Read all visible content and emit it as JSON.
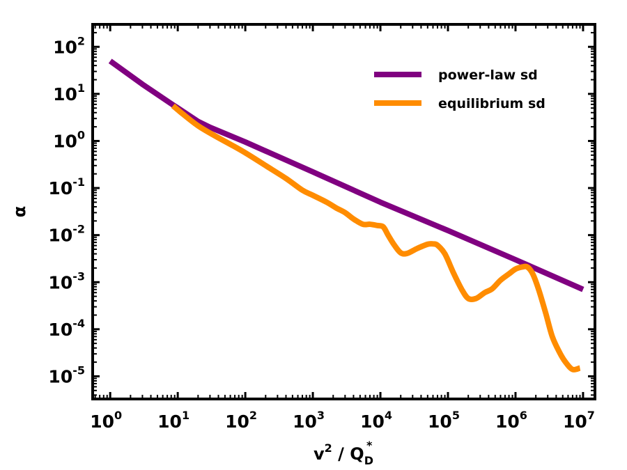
{
  "chart_data": {
    "type": "line",
    "xscale": "log",
    "yscale": "log",
    "xlabel": "v² / Q_D*",
    "xlabel_parts": {
      "base": "v",
      "base_sup": "2",
      "sep": " / ",
      "q": "Q",
      "q_sub": "D",
      "q_sup": "*"
    },
    "ylabel": "α",
    "xlim": [
      0.55,
      15000000
    ],
    "ylim": [
      3.3e-06,
      300
    ],
    "x_ticks": [
      {
        "base": "10",
        "exp": "0",
        "value": 1
      },
      {
        "base": "10",
        "exp": "1",
        "value": 10
      },
      {
        "base": "10",
        "exp": "2",
        "value": 100
      },
      {
        "base": "10",
        "exp": "3",
        "value": 1000
      },
      {
        "base": "10",
        "exp": "4",
        "value": 10000
      },
      {
        "base": "10",
        "exp": "5",
        "value": 100000
      },
      {
        "base": "10",
        "exp": "6",
        "value": 1000000
      },
      {
        "base": "10",
        "exp": "7",
        "value": 10000000
      }
    ],
    "y_ticks": [
      {
        "base": "10",
        "exp": "2",
        "value": 100
      },
      {
        "base": "10",
        "exp": "1",
        "value": 10
      },
      {
        "base": "10",
        "exp": "0",
        "value": 1
      },
      {
        "base": "10",
        "exp": "-1",
        "value": 0.1
      },
      {
        "base": "10",
        "exp": "-2",
        "value": 0.01
      },
      {
        "base": "10",
        "exp": "-3",
        "value": 0.001
      },
      {
        "base": "10",
        "exp": "-4",
        "value": 0.0001
      },
      {
        "base": "10",
        "exp": "-5",
        "value": 1e-05
      }
    ],
    "legend_position": "top-right",
    "series": [
      {
        "name": "power-law sd",
        "color": "#800080",
        "x": [
          1,
          3,
          8,
          20,
          30,
          100,
          1000,
          10000,
          100000,
          1000000,
          10000000
        ],
        "y": [
          50,
          16,
          6.2,
          2.6,
          1.95,
          0.95,
          0.22,
          0.05,
          0.0125,
          0.003,
          0.0007
        ]
      },
      {
        "name": "equilibrium sd",
        "color": "#ff8c00",
        "x": [
          8.5,
          12,
          20,
          35,
          60,
          100,
          200,
          400,
          700,
          1000,
          1600,
          2200,
          3000,
          4000,
          5500,
          7000,
          9000,
          11000,
          13000,
          16000,
          20000,
          25000,
          35000,
          50000,
          60000,
          70000,
          90000,
          120000,
          160000,
          200000,
          260000,
          350000,
          450000,
          600000,
          800000,
          1000000,
          1250000,
          1500000,
          1800000,
          2200000,
          2800000,
          3500000,
          4500000,
          5500000,
          7000000,
          9000000
        ],
        "y": [
          5.6,
          3.7,
          2.1,
          1.3,
          0.85,
          0.56,
          0.3,
          0.16,
          0.09,
          0.07,
          0.05,
          0.038,
          0.03,
          0.022,
          0.017,
          0.017,
          0.016,
          0.015,
          0.01,
          0.0062,
          0.0042,
          0.0041,
          0.0052,
          0.0064,
          0.0065,
          0.0061,
          0.004,
          0.0016,
          0.0007,
          0.00045,
          0.00045,
          0.0006,
          0.00072,
          0.0011,
          0.0015,
          0.0019,
          0.0021,
          0.0021,
          0.0015,
          0.0007,
          0.00022,
          7e-05,
          3.2e-05,
          2e-05,
          1.4e-05,
          1.5e-05
        ]
      }
    ]
  }
}
